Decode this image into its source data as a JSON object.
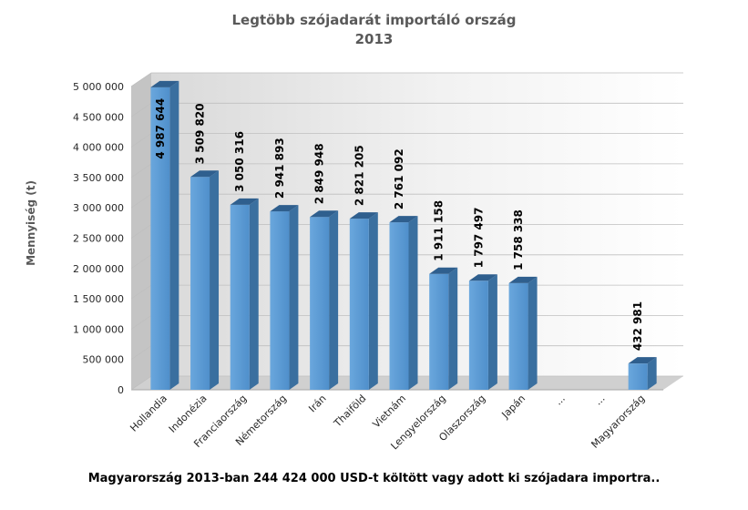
{
  "chart_data": {
    "type": "bar",
    "title": "Legtöbb szójadarát importáló ország",
    "subtitle": "2013",
    "xlabel": "",
    "ylabel": "Mennyiség (t)",
    "ylim": [
      0,
      5000000
    ],
    "yticks": [
      0,
      500000,
      1000000,
      1500000,
      2000000,
      2500000,
      3000000,
      3500000,
      4000000,
      4500000,
      5000000
    ],
    "ytick_labels": [
      "0",
      "500 000",
      "1 000 000",
      "1 500 000",
      "2 000 000",
      "2 500 000",
      "3 000 000",
      "3 500 000",
      "4 000 000",
      "4 500 000",
      "5 000 000"
    ],
    "categories": [
      "Hollandia",
      "Indonézia",
      "Franciaország",
      "Németország",
      "Irán",
      "Thaiföld",
      "Vietnám",
      "Lengyelország",
      "Olaszország",
      "Japán",
      "...",
      "...",
      "Magyarország"
    ],
    "values": [
      4987644,
      3509820,
      3050316,
      2941893,
      2849948,
      2821205,
      2761092,
      1911158,
      1797497,
      1758338,
      null,
      null,
      432981
    ],
    "data_labels": [
      "4 987 644",
      "3 509 820",
      "3 050 316",
      "2 941 893",
      "2 849 948",
      "2 821 205",
      "2 761 092",
      "1 911 158",
      "1 797 497",
      "1 758 338",
      "",
      "",
      "432 981"
    ],
    "bar_color": "#5b9bd5",
    "grid": true,
    "legend": "none"
  },
  "footer": {
    "note": "Magyarország 2013-ban 244 424 000 USD-t költött vagy adott ki szójadara importra.."
  }
}
